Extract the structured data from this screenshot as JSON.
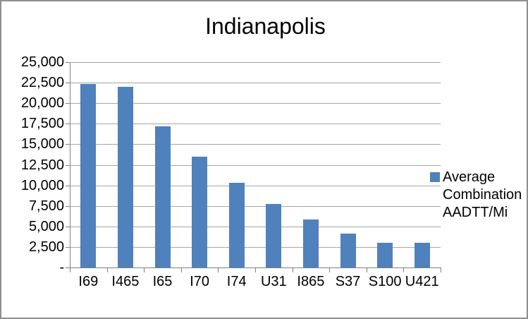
{
  "window": {
    "background": "#ffffff",
    "border_color": "#8f8f8f"
  },
  "chart_data": {
    "type": "bar",
    "title": "Indianapolis",
    "categories": [
      "I69",
      "I465",
      "I65",
      "I70",
      "I74",
      "U31",
      "I865",
      "S37",
      "S100",
      "U421"
    ],
    "series": [
      {
        "name": "Average Combination AADTT/Mi",
        "values": [
          22300,
          22000,
          17200,
          13500,
          10300,
          7700,
          5800,
          4100,
          3000,
          3000
        ]
      }
    ],
    "xlabel": "",
    "ylabel": "",
    "ylim": [
      0,
      25000
    ],
    "ytick_step": 2500,
    "ytick_labels": [
      "-",
      "2,500",
      "5,000",
      "7,500",
      "10,000",
      "12,500",
      "15,000",
      "17,500",
      "20,000",
      "22,500",
      "25,000"
    ],
    "grid": true,
    "legend_position": "right",
    "legend_lines": [
      "Average",
      "Combination",
      "AADTT/Mi"
    ],
    "colors": {
      "bar": "#4f81bd",
      "gridline": "#a6a6a6",
      "axis": "#808080",
      "text": "#000000"
    }
  }
}
